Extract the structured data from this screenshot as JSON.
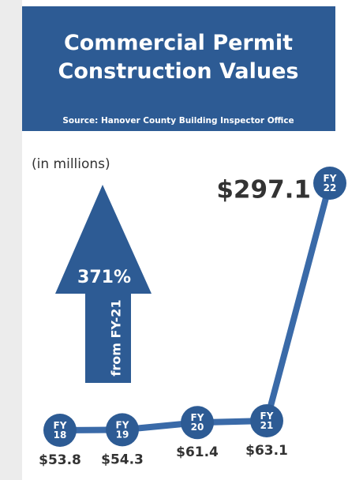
{
  "chart_data": {
    "type": "line",
    "title": "Commercial Permit Construction Values",
    "subtitle": "Source: Hanover County Building Inspector Office",
    "unit_note": "(in millions)",
    "annotation": {
      "change": "371%",
      "text": "from FY-21"
    },
    "categories": [
      "FY 18",
      "FY 19",
      "FY 20",
      "FY 21",
      "FY 22"
    ],
    "values": [
      53.8,
      54.3,
      61.4,
      63.1,
      297.1
    ],
    "value_labels": [
      "$53.8",
      "$54.3",
      "$61.4",
      "$63.1",
      "$297.1"
    ],
    "color": "#2d5b94"
  }
}
